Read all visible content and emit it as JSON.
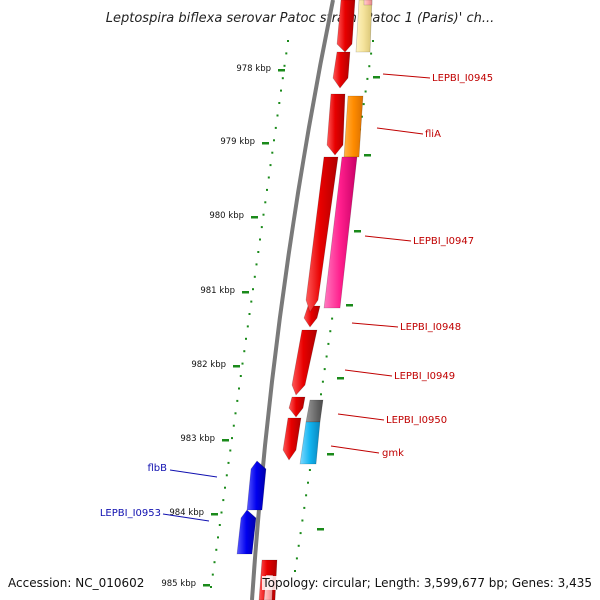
{
  "title": "Leptospira biflexa serovar Patoc strain 'Patoc 1 (Paris)' ch...",
  "footer": {
    "accession": "Accession: NC_010602",
    "summary": "Topology: circular; Length: 3,599,677 bp; Genes: 3,435"
  },
  "colors": {
    "backbone": "#7a7a7a",
    "tick": "#1a8a1a",
    "forward_label": "#c00000",
    "reverse_label": "#1010b0"
  },
  "ruler": [
    {
      "label": "978 kbp",
      "pos_kbp": 978
    },
    {
      "label": "979 kbp",
      "pos_kbp": 979
    },
    {
      "label": "980 kbp",
      "pos_kbp": 980
    },
    {
      "label": "981 kbp",
      "pos_kbp": 981
    },
    {
      "label": "982 kbp",
      "pos_kbp": 982
    },
    {
      "label": "983 kbp",
      "pos_kbp": 983
    },
    {
      "label": "984 kbp",
      "pos_kbp": 984
    },
    {
      "label": "985 kbp",
      "pos_kbp": 985
    }
  ],
  "genes": [
    {
      "name": "LEPBI_I0945",
      "strand": "forward",
      "color": "#e00000",
      "labeled": true
    },
    {
      "name": "fliA",
      "strand": "forward",
      "color": "#ff8c00",
      "labeled": true
    },
    {
      "name": "LEPBI_I0947",
      "strand": "forward",
      "color": "#ff1e8c",
      "labeled": true
    },
    {
      "name": "LEPBI_I0948",
      "strand": "forward",
      "color": "#e00000",
      "labeled": true
    },
    {
      "name": "LEPBI_I0949",
      "strand": "forward",
      "color": "#e00000",
      "labeled": true
    },
    {
      "name": "LEPBI_I0950",
      "strand": "forward",
      "color": "#707070",
      "labeled": true
    },
    {
      "name": "gmk",
      "strand": "forward",
      "color": "#12b4f0",
      "labeled": true
    },
    {
      "name": "flbB",
      "strand": "reverse",
      "color": "#0000ee",
      "labeled": true
    },
    {
      "name": "LEPBI_I0953",
      "strand": "reverse",
      "color": "#0000ee",
      "labeled": true
    }
  ]
}
